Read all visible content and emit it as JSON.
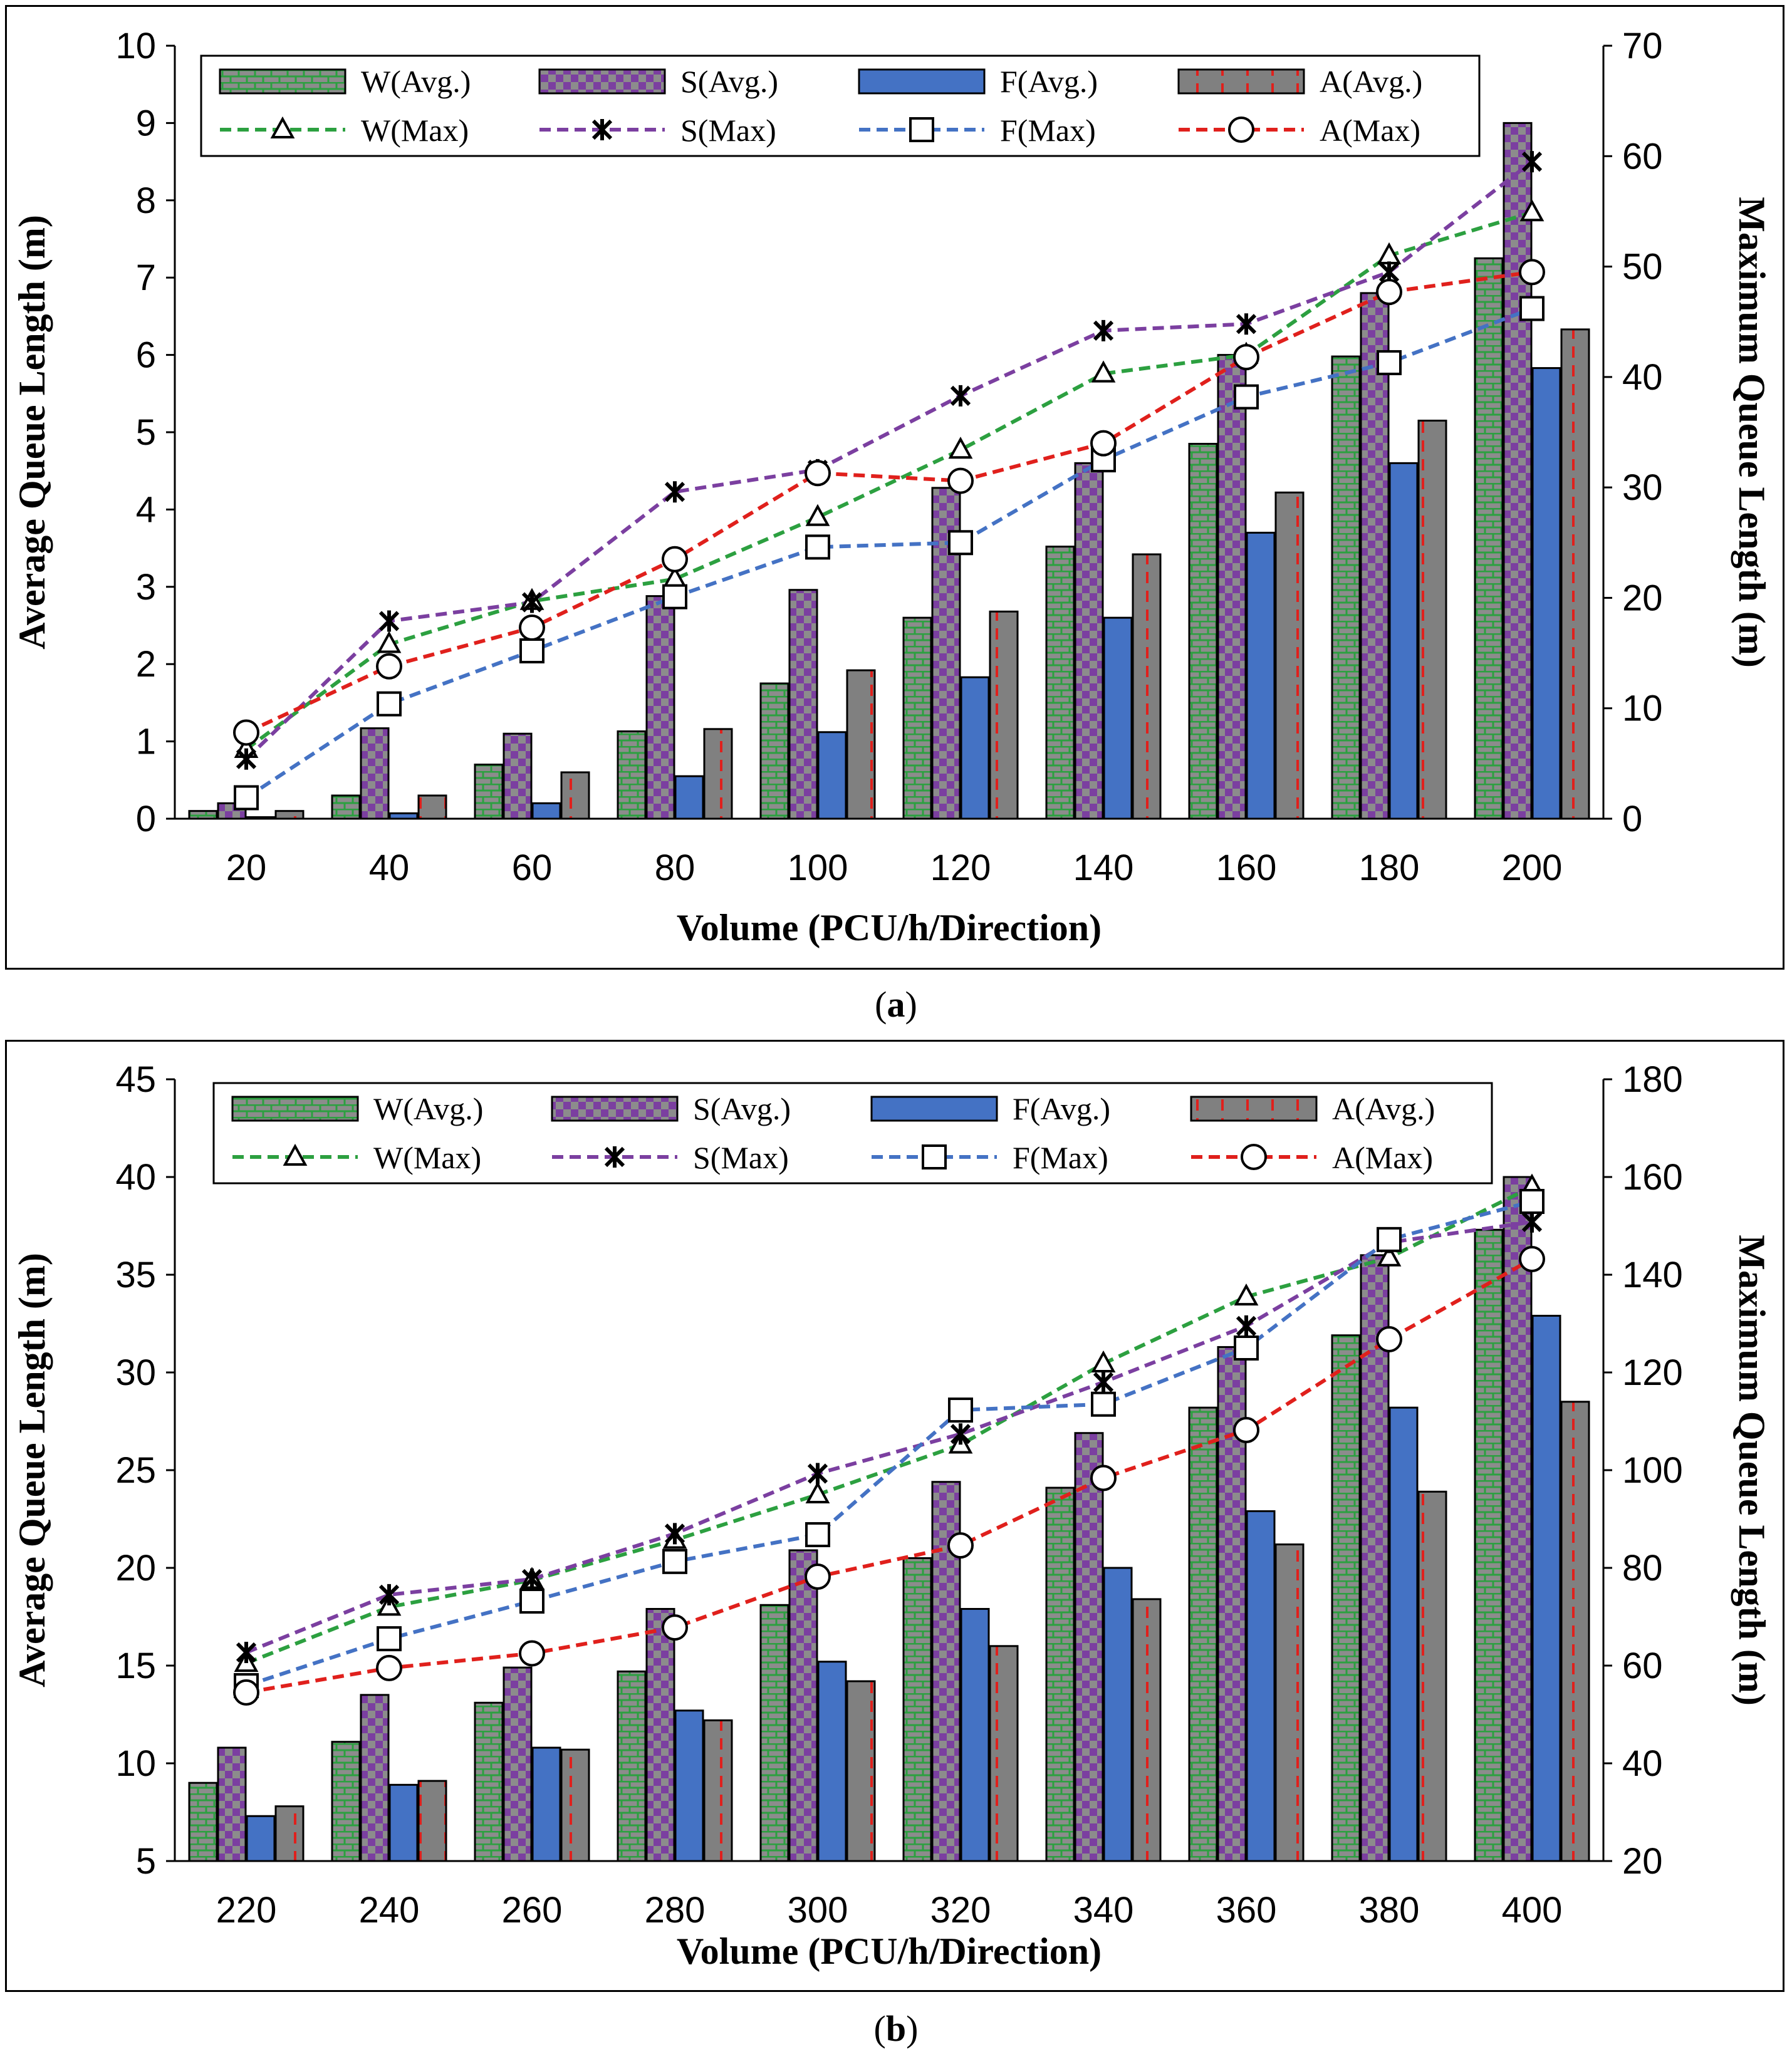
{
  "chart_data": [
    {
      "type": "bar",
      "panel": "a",
      "caption_letter": "a",
      "xlabel": "Volume (PCU/h/Direction)",
      "ylabel": "Average Queue Length (m)",
      "y2label": "Maximum Queue Length (m)",
      "categories": [
        "20",
        "40",
        "60",
        "80",
        "100",
        "120",
        "140",
        "160",
        "180",
        "200"
      ],
      "ylim": [
        0,
        10
      ],
      "yticks": [
        0,
        1,
        2,
        3,
        4,
        5,
        6,
        7,
        8,
        9,
        10
      ],
      "y2lim": [
        0,
        70
      ],
      "y2ticks": [
        0,
        10,
        20,
        30,
        40,
        50,
        60,
        70
      ],
      "bar_series": [
        {
          "name": "W(Avg.)",
          "values": [
            0.1,
            0.3,
            0.7,
            1.13,
            1.75,
            2.6,
            3.52,
            4.85,
            5.98,
            7.25
          ]
        },
        {
          "name": "S(Avg.)",
          "values": [
            0.2,
            1.17,
            1.1,
            2.88,
            2.96,
            4.28,
            4.6,
            6.0,
            6.8,
            9.0
          ]
        },
        {
          "name": "F(Avg.)",
          "values": [
            0.02,
            0.07,
            0.2,
            0.55,
            1.12,
            1.83,
            2.6,
            3.7,
            4.6,
            5.83
          ]
        },
        {
          "name": "A(Avg.)",
          "values": [
            0.1,
            0.3,
            0.6,
            1.16,
            1.92,
            2.68,
            3.42,
            4.22,
            5.15,
            6.33
          ]
        }
      ],
      "line_series": [
        {
          "name": "W(Max)",
          "values": [
            6.3,
            15.8,
            19.7,
            21.7,
            27.3,
            33.4,
            40.3,
            42.0,
            51.0,
            54.9
          ]
        },
        {
          "name": "S(Max)",
          "values": [
            5.4,
            17.9,
            19.6,
            29.6,
            31.6,
            38.3,
            44.2,
            44.8,
            49.5,
            59.5
          ]
        },
        {
          "name": "F(Max)",
          "values": [
            1.9,
            10.4,
            15.2,
            20.1,
            24.6,
            25.0,
            32.5,
            38.2,
            41.3,
            46.2
          ]
        },
        {
          "name": "A(Max)",
          "values": [
            7.8,
            13.8,
            17.3,
            23.5,
            31.3,
            30.6,
            34.0,
            41.8,
            47.7,
            49.5
          ]
        }
      ]
    },
    {
      "type": "bar",
      "panel": "b",
      "caption_letter": "b",
      "xlabel": "Volume (PCU/h/Direction)",
      "ylabel": "Average Queue Length (m)",
      "y2label": "Maximum Queue Length (m)",
      "categories": [
        "220",
        "240",
        "260",
        "280",
        "300",
        "320",
        "340",
        "360",
        "380",
        "400"
      ],
      "ylim": [
        5,
        45
      ],
      "yticks": [
        5,
        10,
        15,
        20,
        25,
        30,
        35,
        40,
        45
      ],
      "y2lim": [
        20,
        180
      ],
      "y2ticks": [
        20,
        40,
        60,
        80,
        100,
        120,
        140,
        160,
        180
      ],
      "bar_series": [
        {
          "name": "W(Avg.)",
          "values": [
            9.0,
            11.1,
            13.1,
            14.7,
            18.1,
            20.5,
            24.1,
            28.2,
            31.9,
            37.3
          ]
        },
        {
          "name": "S(Avg.)",
          "values": [
            10.8,
            13.5,
            14.9,
            17.9,
            20.9,
            24.4,
            26.9,
            31.3,
            36.0,
            40.0
          ]
        },
        {
          "name": "F(Avg.)",
          "values": [
            7.3,
            8.9,
            10.8,
            12.7,
            15.2,
            17.9,
            20.0,
            22.9,
            28.2,
            32.9
          ]
        },
        {
          "name": "A(Avg.)",
          "values": [
            7.8,
            9.1,
            10.7,
            12.2,
            14.2,
            16.0,
            18.4,
            21.2,
            23.9,
            28.5
          ]
        }
      ],
      "line_series": [
        {
          "name": "W(Max)",
          "values": [
            60.5,
            72.0,
            77.5,
            85.7,
            95.0,
            105.2,
            121.8,
            135.5,
            143.5,
            158.0
          ]
        },
        {
          "name": "S(Max)",
          "values": [
            62.7,
            74.5,
            77.7,
            87.0,
            99.3,
            107.4,
            118.0,
            129.5,
            146.6,
            150.8
          ]
        },
        {
          "name": "F(Max)",
          "values": [
            55.9,
            65.5,
            73.2,
            81.3,
            86.8,
            112.3,
            113.5,
            125.0,
            147.2,
            155.0
          ]
        },
        {
          "name": "A(Max)",
          "values": [
            54.5,
            59.5,
            62.5,
            67.8,
            78.2,
            84.6,
            98.4,
            108.2,
            126.8,
            143.2
          ]
        }
      ]
    }
  ],
  "colors": {
    "W": "#2ca040",
    "W_fill": "#8c8c8c",
    "S": "#7b3fa0",
    "S_fill": "#8c8c8c",
    "F": "#4472c4",
    "F_fill": "#4472c4",
    "A": "#e0201c",
    "A_fill": "#808080"
  }
}
